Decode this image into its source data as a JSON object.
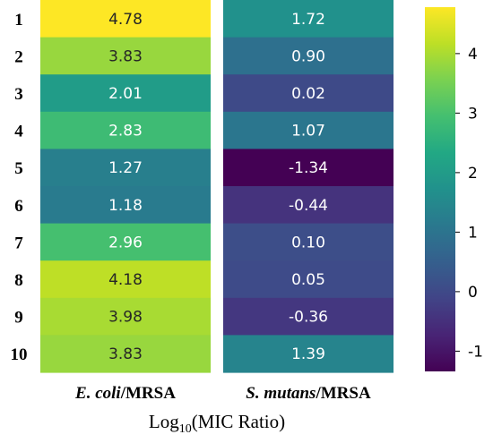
{
  "chart_data": {
    "type": "heatmap",
    "rows": [
      "1",
      "2",
      "3",
      "4",
      "5",
      "6",
      "7",
      "8",
      "9",
      "10"
    ],
    "columns": [
      {
        "italic": "E. coli",
        "plain": "/MRSA"
      },
      {
        "italic": "S. mutans",
        "plain": "/MRSA"
      }
    ],
    "values": [
      [
        4.78,
        1.72
      ],
      [
        3.83,
        0.9
      ],
      [
        2.01,
        0.02
      ],
      [
        2.83,
        1.07
      ],
      [
        1.27,
        -1.34
      ],
      [
        1.18,
        -0.44
      ],
      [
        2.96,
        0.1
      ],
      [
        4.18,
        0.05
      ],
      [
        3.98,
        -0.36
      ],
      [
        3.83,
        1.39
      ]
    ],
    "cell_labels": [
      [
        "4.78",
        "1.72"
      ],
      [
        "3.83",
        "0.90"
      ],
      [
        "2.01",
        "0.02"
      ],
      [
        "2.83",
        "1.07"
      ],
      [
        "1.27",
        "-1.34"
      ],
      [
        "1.18",
        "-0.44"
      ],
      [
        "2.96",
        "0.10"
      ],
      [
        "4.18",
        "0.05"
      ],
      [
        "3.98",
        "-0.36"
      ],
      [
        "3.83",
        "1.39"
      ]
    ],
    "colorscale": "viridis",
    "color_range": [
      -1.34,
      4.78
    ],
    "colorbar": {
      "ticks": [
        4,
        3,
        2,
        1,
        0,
        -1
      ],
      "tick_labels": [
        "4",
        "3",
        "2",
        "1",
        "0",
        "-1"
      ]
    },
    "xlabel": {
      "prefix": "Log",
      "subscript": "10",
      "suffix": "(MIC Ratio)"
    }
  }
}
